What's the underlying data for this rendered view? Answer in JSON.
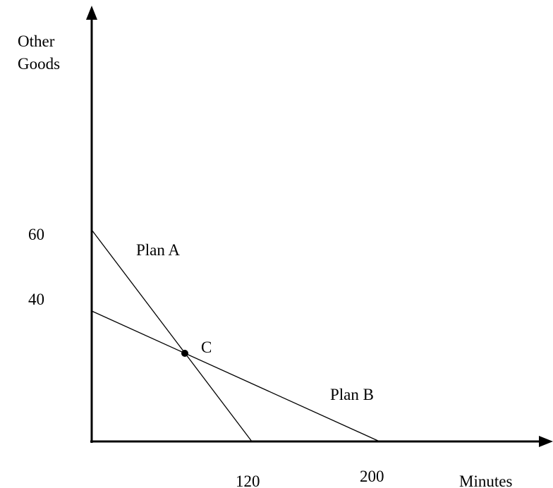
{
  "y_axis_label": [
    "Other",
    "Goods"
  ],
  "x_axis_label": "Minutes",
  "y_labels": [
    "60",
    "40"
  ],
  "x_labels": [
    "120",
    "200"
  ],
  "lines": [
    {
      "label": "Plan A"
    },
    {
      "label": "Plan B"
    }
  ],
  "point": {
    "label": "C"
  }
}
